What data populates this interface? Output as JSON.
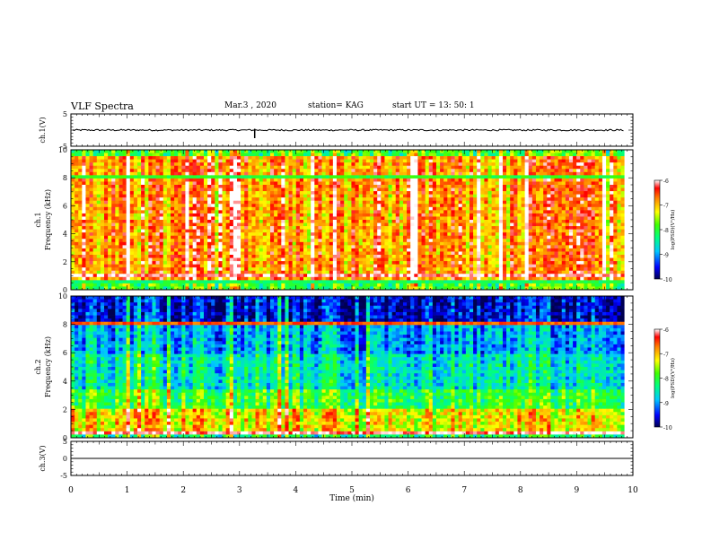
{
  "header": {
    "title": "VLF Spectra",
    "date": "Mar.3 , 2020",
    "station": "station= KAG",
    "start": "start UT = 13: 50: 1"
  },
  "chart_data": [
    {
      "type": "line",
      "panel": "ch1-waveform",
      "ylabel": "ch.1(V)",
      "ylim": [
        -5,
        5
      ],
      "yticks": [
        "5",
        "-5"
      ],
      "series": [
        {
          "values_note": "",
          "baseline": 0
        }
      ]
    },
    {
      "type": "heatmap",
      "panel": "ch1-spectrogram",
      "ylabel_top": "ch.1",
      "ylabel": "Frequency (kHz)",
      "ylim": [
        0,
        10
      ],
      "yticks": [
        "0",
        "2",
        "4",
        "6",
        "8",
        "10"
      ],
      "colorbar": {
        "label": "log(PSD)(V²/Hz)",
        "range": [
          -10,
          -6
        ],
        "ticks": [
          "-6",
          "-7",
          "-8",
          "-9",
          "-10"
        ]
      }
    },
    {
      "type": "heatmap",
      "panel": "ch2-spectrogram",
      "ylabel_top": "ch.2",
      "ylabel": "Frequency (kHz)",
      "ylim": [
        0,
        10
      ],
      "yticks": [
        "0",
        "2",
        "4",
        "6",
        "8",
        "10"
      ],
      "colorbar": {
        "label": "log(PSD)(V²/Hz)",
        "range": [
          -10,
          -6
        ],
        "ticks": [
          "-6",
          "-7",
          "-8",
          "-9",
          "-10"
        ]
      }
    },
    {
      "type": "line",
      "panel": "ch3-waveform",
      "ylabel": "ch.3(V)",
      "ylim": [
        -5,
        5
      ],
      "yticks": [
        "5",
        "0",
        "-5"
      ]
    }
  ],
  "xaxis": {
    "label": "Time (min)",
    "range": [
      0,
      10
    ],
    "ticks": [
      "0",
      "1",
      "2",
      "3",
      "4",
      "5",
      "6",
      "7",
      "8",
      "9",
      "10"
    ]
  },
  "colors": {
    "low": "#00006e",
    "mid": "#00ff00",
    "high": "#ff0000"
  }
}
